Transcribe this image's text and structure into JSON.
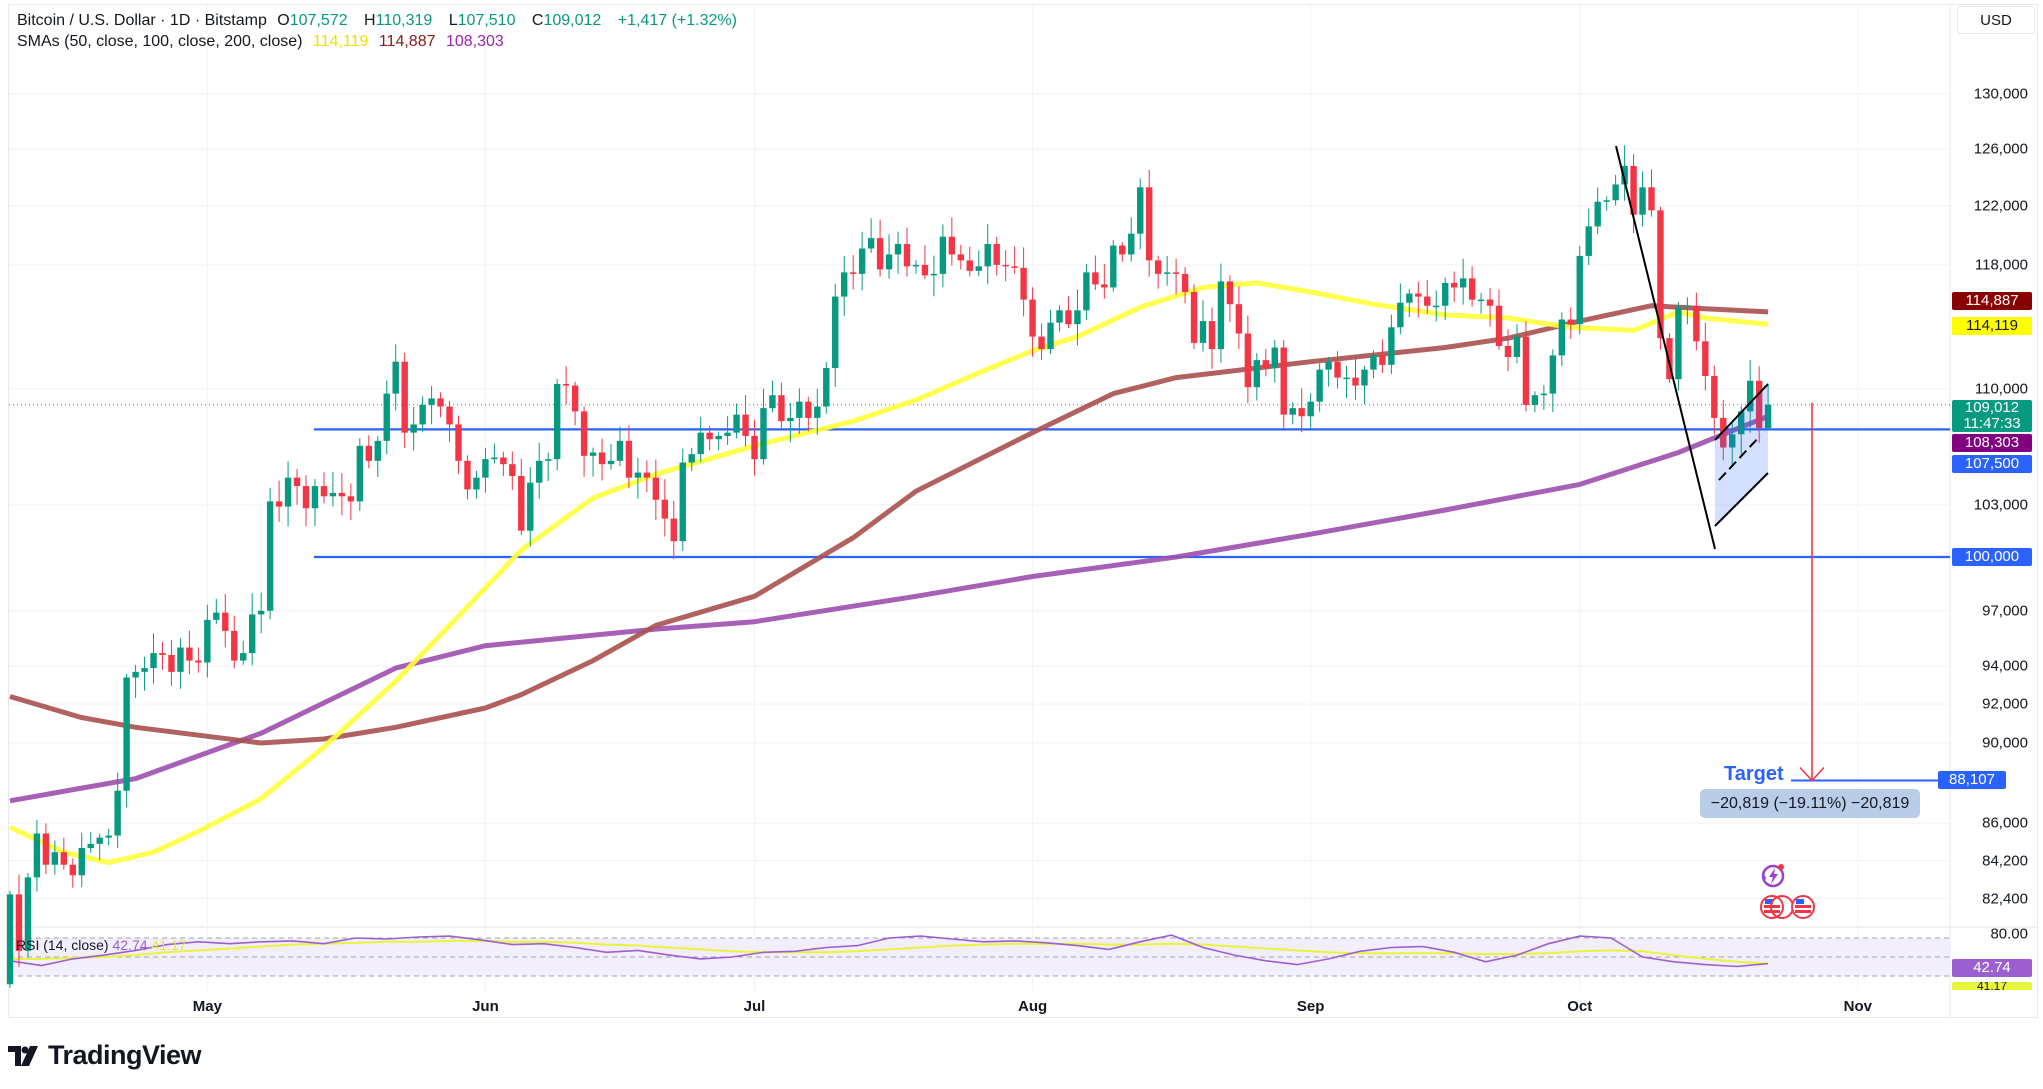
{
  "header": {
    "symbol": "Bitcoin / U.S. Dollar · 1D · Bitstamp",
    "o_label": "O",
    "o": "107,572",
    "h_label": "H",
    "h": "110,319",
    "l_label": "L",
    "l": "107,510",
    "c_label": "C",
    "c": "109,012",
    "change": "+1,417 (+1.32%)",
    "sma_label": "SMAs (50, close, 100, close, 200, close)",
    "sma50": "114,119",
    "sma100": "114,887",
    "sma200": "108,303"
  },
  "currency_button": "USD",
  "price_axis": {
    "ticks": [
      "130,000",
      "126,000",
      "122,000",
      "118,000",
      "110,000",
      "103,000",
      "97,000",
      "94,000",
      "92,000",
      "90,000",
      "86,000",
      "84,200",
      "82,400"
    ],
    "tick_values": [
      130000,
      126000,
      122000,
      118000,
      110000,
      103000,
      97000,
      94000,
      92000,
      90000,
      86000,
      84200,
      82400
    ],
    "rsi_tick": "80.00"
  },
  "badges": {
    "sma100": "114,887",
    "sma50": "114,119",
    "last_price": "109,012",
    "countdown": "11:47:33",
    "sma200": "108,303",
    "level1": "107,500",
    "level2": "100,000",
    "target": "88,107",
    "rsi": "42.74",
    "rsi_ma": "41.17"
  },
  "x_axis": {
    "months": [
      "May",
      "Jun",
      "Jul",
      "Aug",
      "Sep",
      "Oct",
      "Nov"
    ],
    "month_start_index": [
      22,
      53,
      83,
      114,
      145,
      175,
      206
    ]
  },
  "annotations": {
    "target_label": "Target",
    "measure": "−20,819 (−19.11%) −20,819",
    "levels": [
      107500,
      100000
    ],
    "target_price": 88107,
    "current_price": 109012
  },
  "rsi": {
    "label": "RSI (14, close)",
    "value": "42.74",
    "ma_value": "41.17",
    "series": [
      46,
      41,
      48,
      52,
      57,
      63,
      66,
      64,
      66,
      67,
      64,
      70,
      69,
      71,
      72,
      68,
      63,
      64,
      60,
      55,
      57,
      52,
      48,
      50,
      55,
      56,
      60,
      62,
      70,
      72,
      69,
      66,
      67,
      65,
      62,
      58,
      66,
      73,
      60,
      52,
      46,
      42,
      48,
      56,
      60,
      61,
      55,
      45,
      52,
      64,
      72,
      70,
      50,
      45,
      42,
      40,
      43
    ],
    "ma": [
      48,
      48,
      49,
      50,
      52,
      55,
      57,
      59,
      61,
      63,
      64,
      65,
      66,
      66,
      67,
      67,
      66,
      66,
      65,
      63,
      62,
      60,
      58,
      56,
      55,
      55,
      55,
      56,
      58,
      60,
      62,
      63,
      64,
      64,
      64,
      63,
      63,
      64,
      63,
      61,
      59,
      57,
      55,
      54,
      54,
      54,
      54,
      53,
      53,
      54,
      56,
      57,
      56,
      52,
      48,
      45,
      43
    ]
  },
  "colors": {
    "up": "#089981",
    "down": "#f23645",
    "sma50": "#ffff3b",
    "sma100": "#a8514f",
    "sma200": "#9c4fae",
    "level": "#2962ff",
    "rsi": "#9c5fd0"
  },
  "chart_data": {
    "type": "candlestick",
    "title": "Bitcoin / U.S. Dollar · 1D · Bitstamp",
    "start_date": "Apr 9",
    "end_date": "Oct 22",
    "first_open_k": 78.5,
    "closes_k": [
      82.6,
      80.0,
      83.4,
      85.5,
      84.0,
      84.6,
      84.0,
      83.5,
      84.8,
      85.0,
      85.3,
      85.4,
      87.6,
      93.4,
      93.7,
      93.9,
      94.7,
      94.6,
      93.7,
      95.0,
      94.3,
      94.2,
      96.5,
      96.9,
      95.9,
      94.3,
      94.7,
      96.8,
      97.0,
      103.2,
      102.9,
      104.6,
      104.1,
      102.8,
      104.1,
      103.5,
      103.7,
      103.5,
      103.2,
      106.5,
      105.6,
      106.8,
      109.7,
      111.7,
      107.3,
      107.8,
      109.0,
      109.4,
      108.9,
      107.8,
      105.6,
      103.9,
      104.6,
      105.7,
      105.8,
      105.4,
      104.7,
      101.5,
      104.3,
      105.6,
      105.7,
      110.3,
      110.2,
      108.6,
      105.9,
      106.1,
      105.4,
      105.6,
      106.8,
      104.6,
      104.9,
      104.6,
      103.3,
      102.2,
      100.9,
      105.5,
      106.0,
      107.3,
      106.9,
      107.1,
      107.3,
      108.4,
      107.1,
      105.7,
      108.8,
      109.6,
      108.0,
      108.2,
      109.2,
      108.2,
      108.9,
      111.3,
      115.9,
      117.5,
      117.4,
      119.1,
      119.8,
      117.7,
      118.7,
      119.4,
      117.9,
      118.0,
      117.3,
      117.4,
      119.9,
      118.7,
      118.3,
      117.6,
      117.9,
      119.4,
      118.0,
      117.9,
      117.8,
      115.7,
      113.3,
      112.5,
      114.2,
      115.0,
      114.1,
      115.0,
      117.5,
      116.7,
      116.5,
      119.3,
      118.7,
      120.1,
      123.3,
      118.3,
      117.4,
      117.5,
      117.4,
      116.2,
      112.9,
      114.3,
      112.5,
      116.9,
      115.4,
      113.5,
      110.1,
      111.8,
      111.3,
      112.6,
      108.4,
      108.8,
      108.3,
      109.2,
      111.2,
      111.7,
      110.7,
      110.7,
      110.2,
      111.2,
      112.1,
      111.5,
      113.9,
      115.5,
      116.1,
      115.9,
      115.3,
      115.3,
      116.8,
      116.5,
      117.1,
      115.7,
      115.7,
      115.3,
      112.7,
      112.0,
      113.3,
      109.0,
      109.6,
      109.7,
      112.1,
      114.4,
      114.1,
      118.6,
      120.6,
      122.3,
      122.4,
      123.5,
      124.8,
      121.4,
      123.3,
      121.7,
      113.2,
      110.6,
      115.2,
      115.3,
      113.0,
      110.8,
      108.2,
      106.4,
      107.2,
      108.6,
      110.5,
      107.572,
      109.012
    ],
    "last_candle": {
      "open": 107572,
      "high": 110319,
      "low": 107510,
      "close": 109012
    },
    "sma50": [
      [
        0,
        85.8
      ],
      [
        6,
        84.6
      ],
      [
        11,
        84.1
      ],
      [
        16,
        84.6
      ],
      [
        21,
        85.6
      ],
      [
        28,
        87.2
      ],
      [
        35,
        89.8
      ],
      [
        43,
        93.2
      ],
      [
        50,
        96.7
      ],
      [
        57,
        100.4
      ],
      [
        65,
        103.4
      ],
      [
        72,
        104.8
      ],
      [
        83,
        106.5
      ],
      [
        94,
        108.0
      ],
      [
        101,
        109.3
      ],
      [
        108,
        111.0
      ],
      [
        114,
        112.4
      ],
      [
        119,
        113.3
      ],
      [
        126,
        115.2
      ],
      [
        133,
        116.5
      ],
      [
        139,
        116.8
      ],
      [
        145,
        116.2
      ],
      [
        152,
        115.4
      ],
      [
        160,
        114.7
      ],
      [
        167,
        114.5
      ],
      [
        174,
        113.9
      ],
      [
        181,
        113.7
      ],
      [
        186,
        114.9
      ],
      [
        189,
        114.5
      ],
      [
        196,
        114.1
      ]
    ],
    "sma100": [
      [
        0,
        92.4
      ],
      [
        8,
        91.3
      ],
      [
        14,
        90.8
      ],
      [
        28,
        90.0
      ],
      [
        35,
        90.2
      ],
      [
        43,
        90.8
      ],
      [
        53,
        91.8
      ],
      [
        57,
        92.5
      ],
      [
        65,
        94.3
      ],
      [
        72,
        96.2
      ],
      [
        83,
        97.8
      ],
      [
        94,
        101.1
      ],
      [
        101,
        103.8
      ],
      [
        114,
        107.3
      ],
      [
        123,
        109.7
      ],
      [
        130,
        110.7
      ],
      [
        145,
        111.7
      ],
      [
        160,
        112.6
      ],
      [
        167,
        113.2
      ],
      [
        175,
        114.3
      ],
      [
        183,
        115.3
      ],
      [
        189,
        115.1
      ],
      [
        196,
        114.9
      ]
    ],
    "sma200": [
      [
        0,
        87.1
      ],
      [
        14,
        88.2
      ],
      [
        28,
        90.5
      ],
      [
        43,
        93.9
      ],
      [
        53,
        95.1
      ],
      [
        72,
        96.0
      ],
      [
        83,
        96.4
      ],
      [
        101,
        97.8
      ],
      [
        114,
        98.9
      ],
      [
        130,
        100.0
      ],
      [
        145,
        101.3
      ],
      [
        160,
        102.7
      ],
      [
        175,
        104.2
      ],
      [
        186,
        106.1
      ],
      [
        196,
        108.3
      ]
    ],
    "ylabel": "USD",
    "yscale": "log",
    "ylim": [
      80000,
      132000
    ]
  },
  "logo": "TradingView"
}
